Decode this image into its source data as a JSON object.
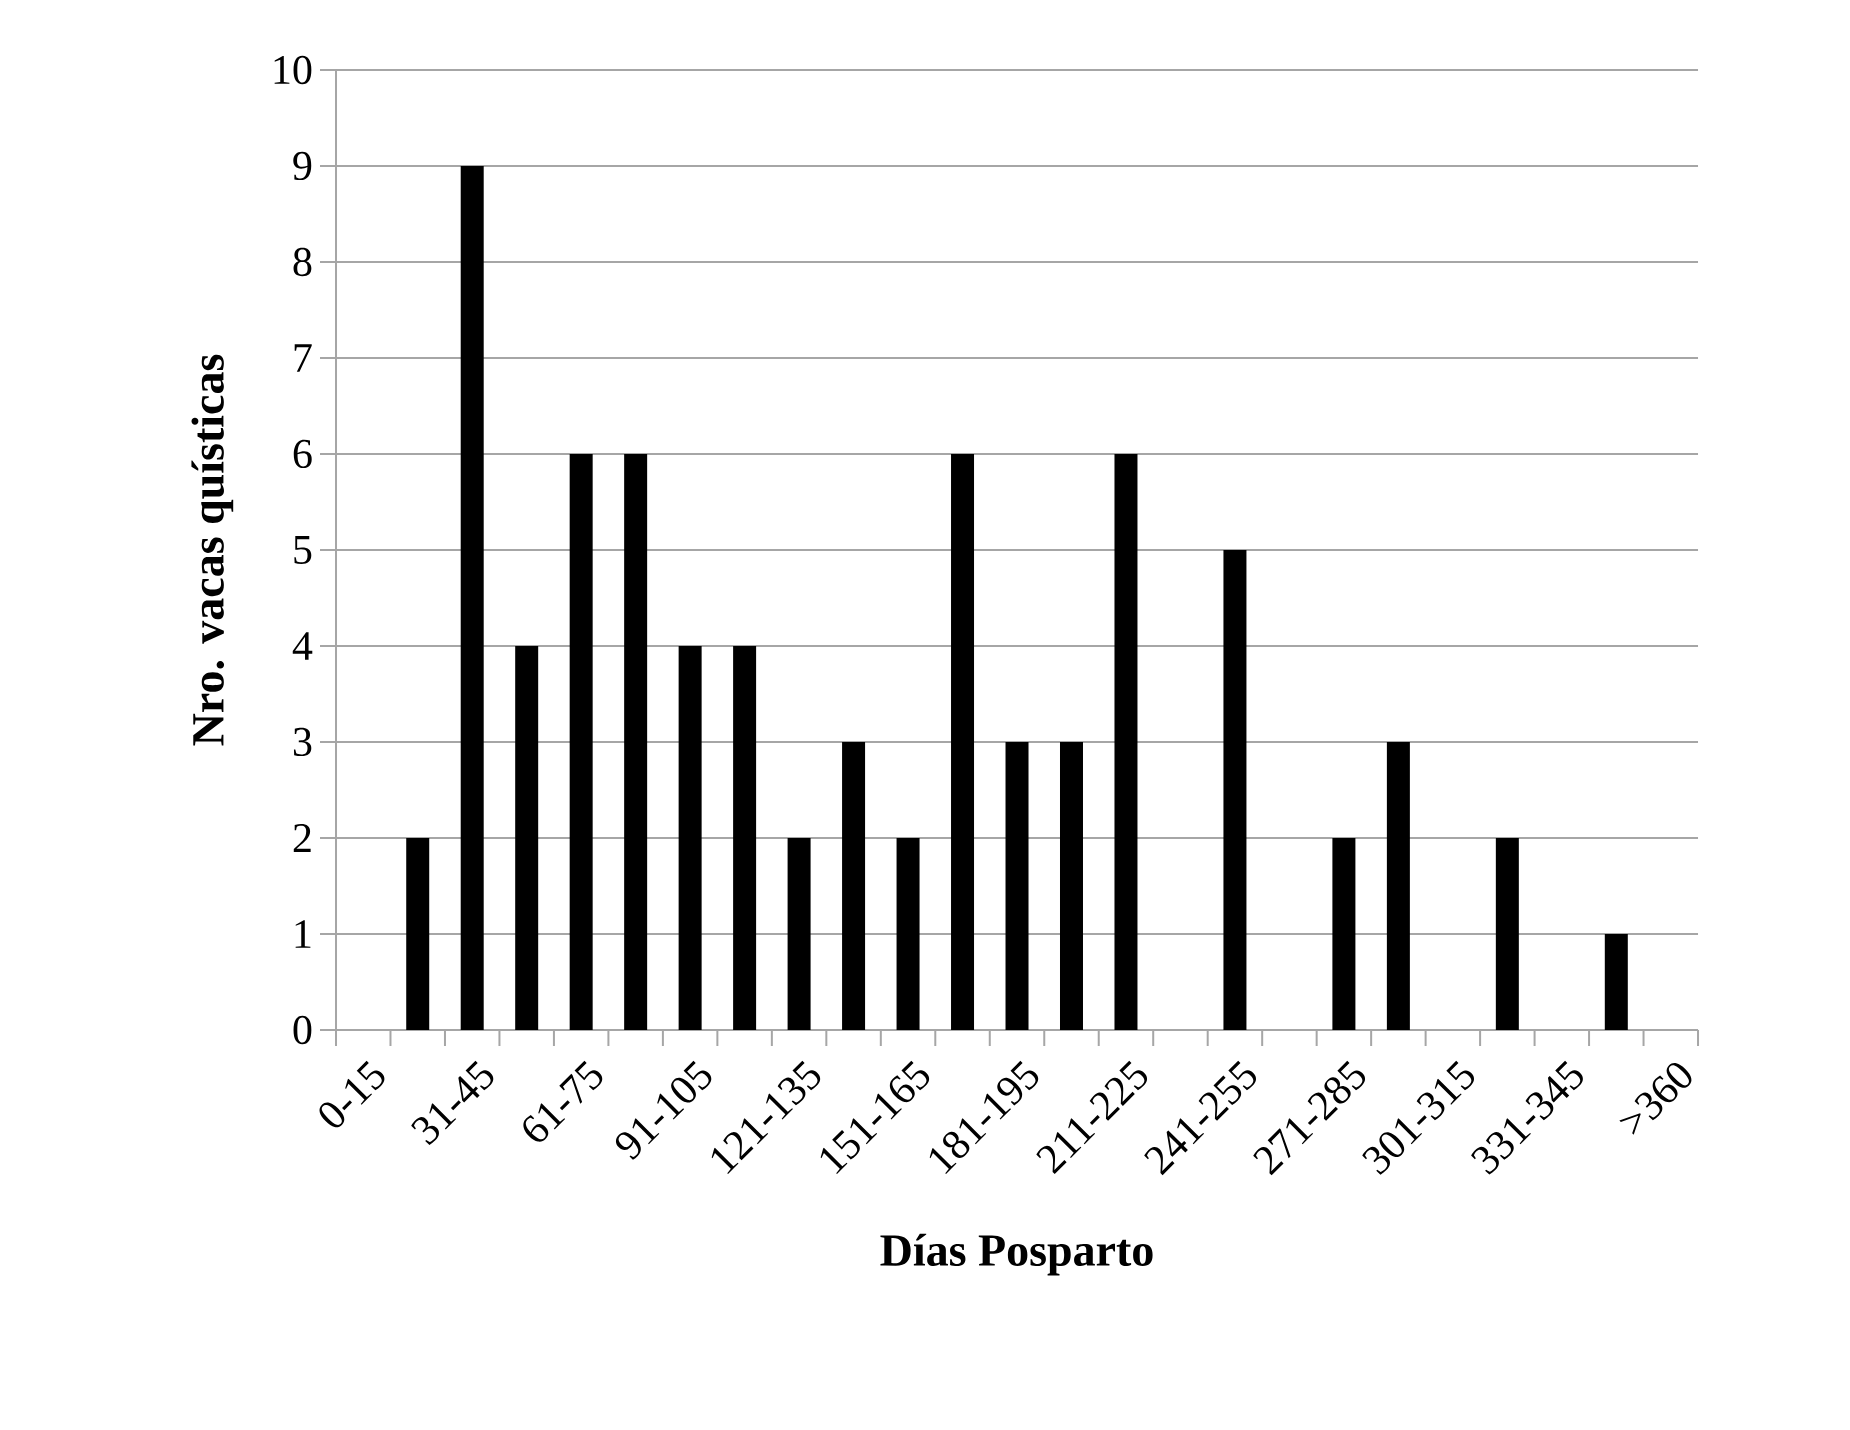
{
  "chart_data": {
    "type": "bar",
    "xlabel": "Días Posparto",
    "ylabel": "Nro. vacas  quísticas",
    "categories": [
      "0-15",
      null,
      "31-45",
      null,
      "61-75",
      null,
      "91-105",
      null,
      "121-135",
      null,
      "151-165",
      null,
      "181-195",
      null,
      "211-225",
      null,
      "241-255",
      null,
      "271-285",
      null,
      "301-315",
      null,
      "331-345",
      null,
      ">360"
    ],
    "values": [
      0,
      2,
      9,
      4,
      6,
      6,
      4,
      4,
      2,
      3,
      2,
      6,
      3,
      3,
      6,
      0,
      5,
      0,
      2,
      3,
      0,
      2,
      0,
      1,
      0
    ],
    "color": "#000000",
    "ylim": [
      0,
      10
    ],
    "yticks": [
      0,
      1,
      2,
      3,
      4,
      5,
      6,
      7,
      8,
      9,
      10
    ],
    "grid": "y"
  }
}
